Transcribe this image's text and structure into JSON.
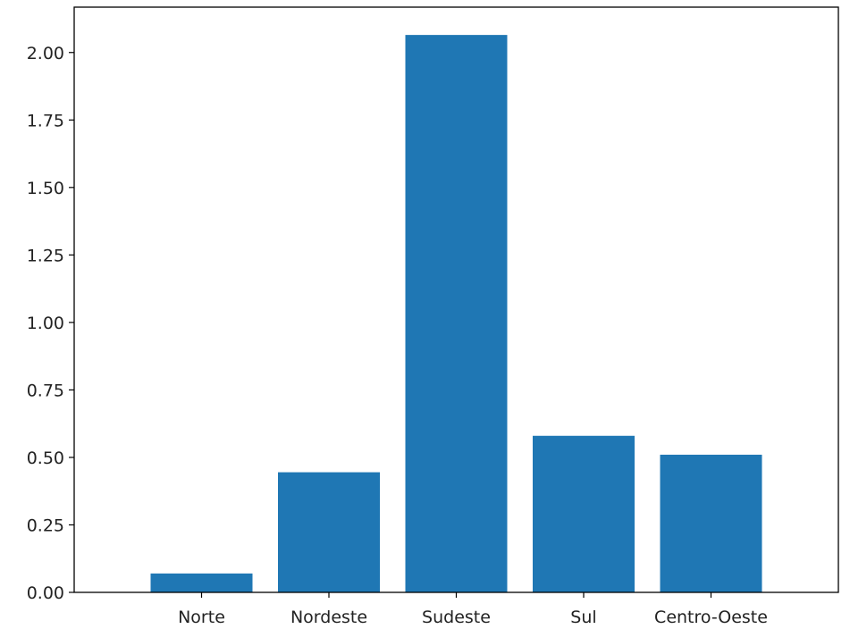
{
  "chart_data": {
    "type": "bar",
    "title": "",
    "xlabel": "",
    "ylabel": "",
    "categories": [
      "Norte",
      "Nordeste",
      "Sudeste",
      "Sul",
      "Centro-Oeste"
    ],
    "values": [
      0.07,
      0.445,
      2.065,
      0.58,
      0.51
    ],
    "ylim": [
      0,
      2.168
    ],
    "yticks": [
      0.0,
      0.25,
      0.5,
      0.75,
      1.0,
      1.25,
      1.5,
      1.75,
      2.0
    ],
    "ytick_labels": [
      "0.00",
      "0.25",
      "0.50",
      "0.75",
      "1.00",
      "1.25",
      "1.50",
      "1.75",
      "2.00"
    ],
    "grid": false,
    "colors": {
      "bar": "#1f77b4",
      "axis": "#000000",
      "text": "#222222"
    }
  }
}
